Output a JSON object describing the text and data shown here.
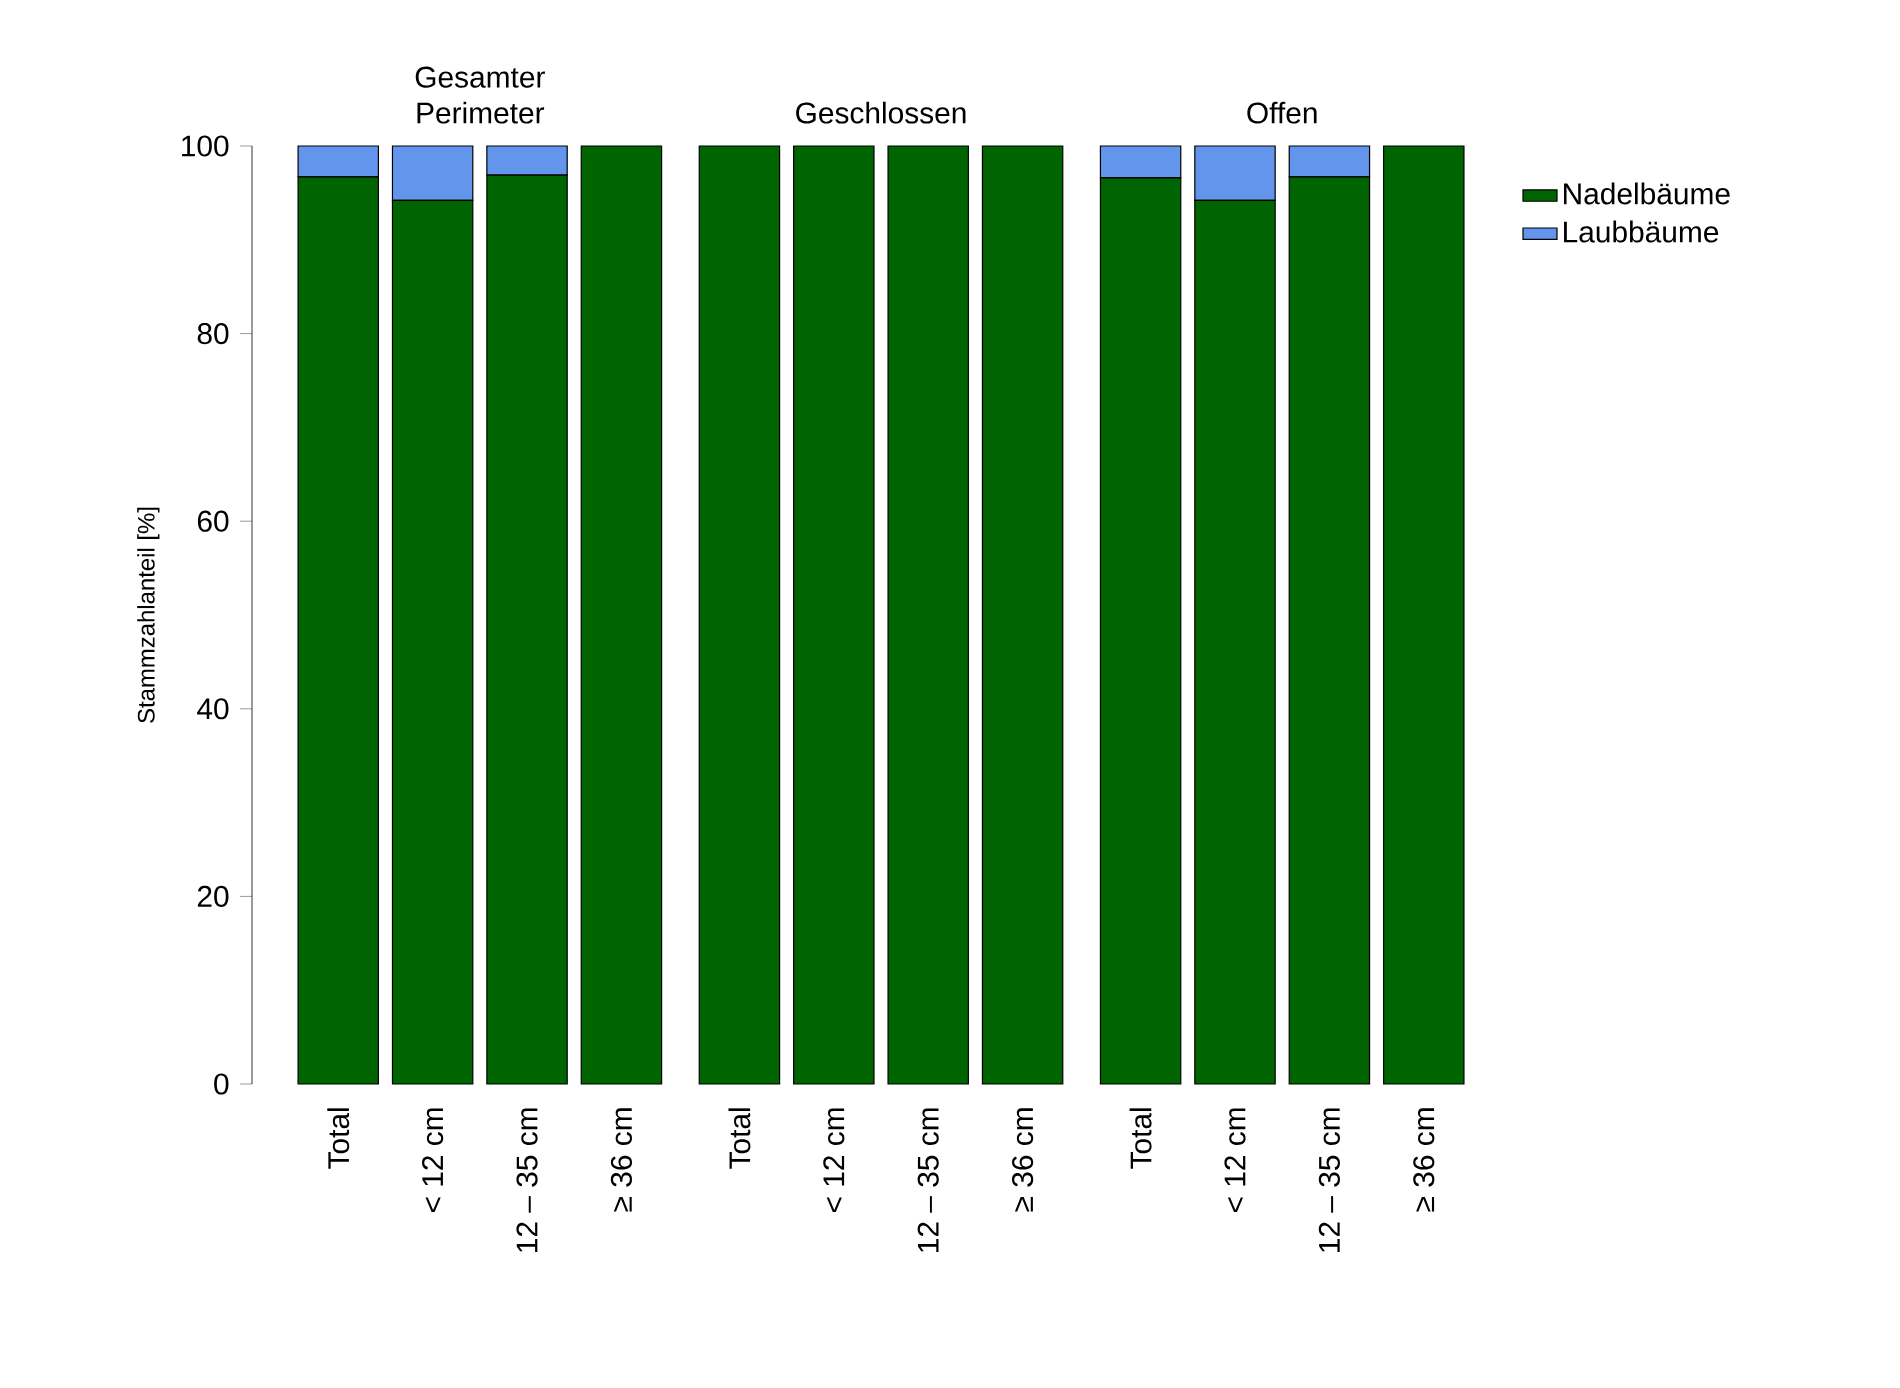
{
  "chart_data": {
    "type": "bar",
    "stacked": true,
    "ylabel": "Stammzahlanteil [%]",
    "categories": [
      "Total",
      "< 12 cm",
      "12 – 35 cm",
      "≥ 36 cm",
      "Total",
      "< 12 cm",
      "12 – 35 cm",
      "≥ 36 cm",
      "Total",
      "< 12 cm",
      "12 – 35 cm",
      "≥ 36 cm"
    ],
    "annotations": [
      "Gesamter Perimeter",
      "Geschlossen",
      "Offen"
    ],
    "series": [
      {
        "name": "Nadelbäume",
        "color": "#006400",
        "values": [
          96.7,
          94.2,
          96.9,
          100,
          100,
          100,
          100,
          100,
          96.6,
          94.2,
          96.7,
          100
        ]
      },
      {
        "name": "Laubbäume",
        "color": "#6495ed",
        "values": [
          3.3,
          5.8,
          3.1,
          0,
          0,
          0,
          0,
          0,
          3.4,
          5.8,
          3.3,
          0
        ]
      }
    ],
    "ylim": [
      0,
      100
    ],
    "yticks": [
      0,
      20,
      40,
      60,
      80,
      100
    ],
    "legend": "top right",
    "grid": false
  }
}
